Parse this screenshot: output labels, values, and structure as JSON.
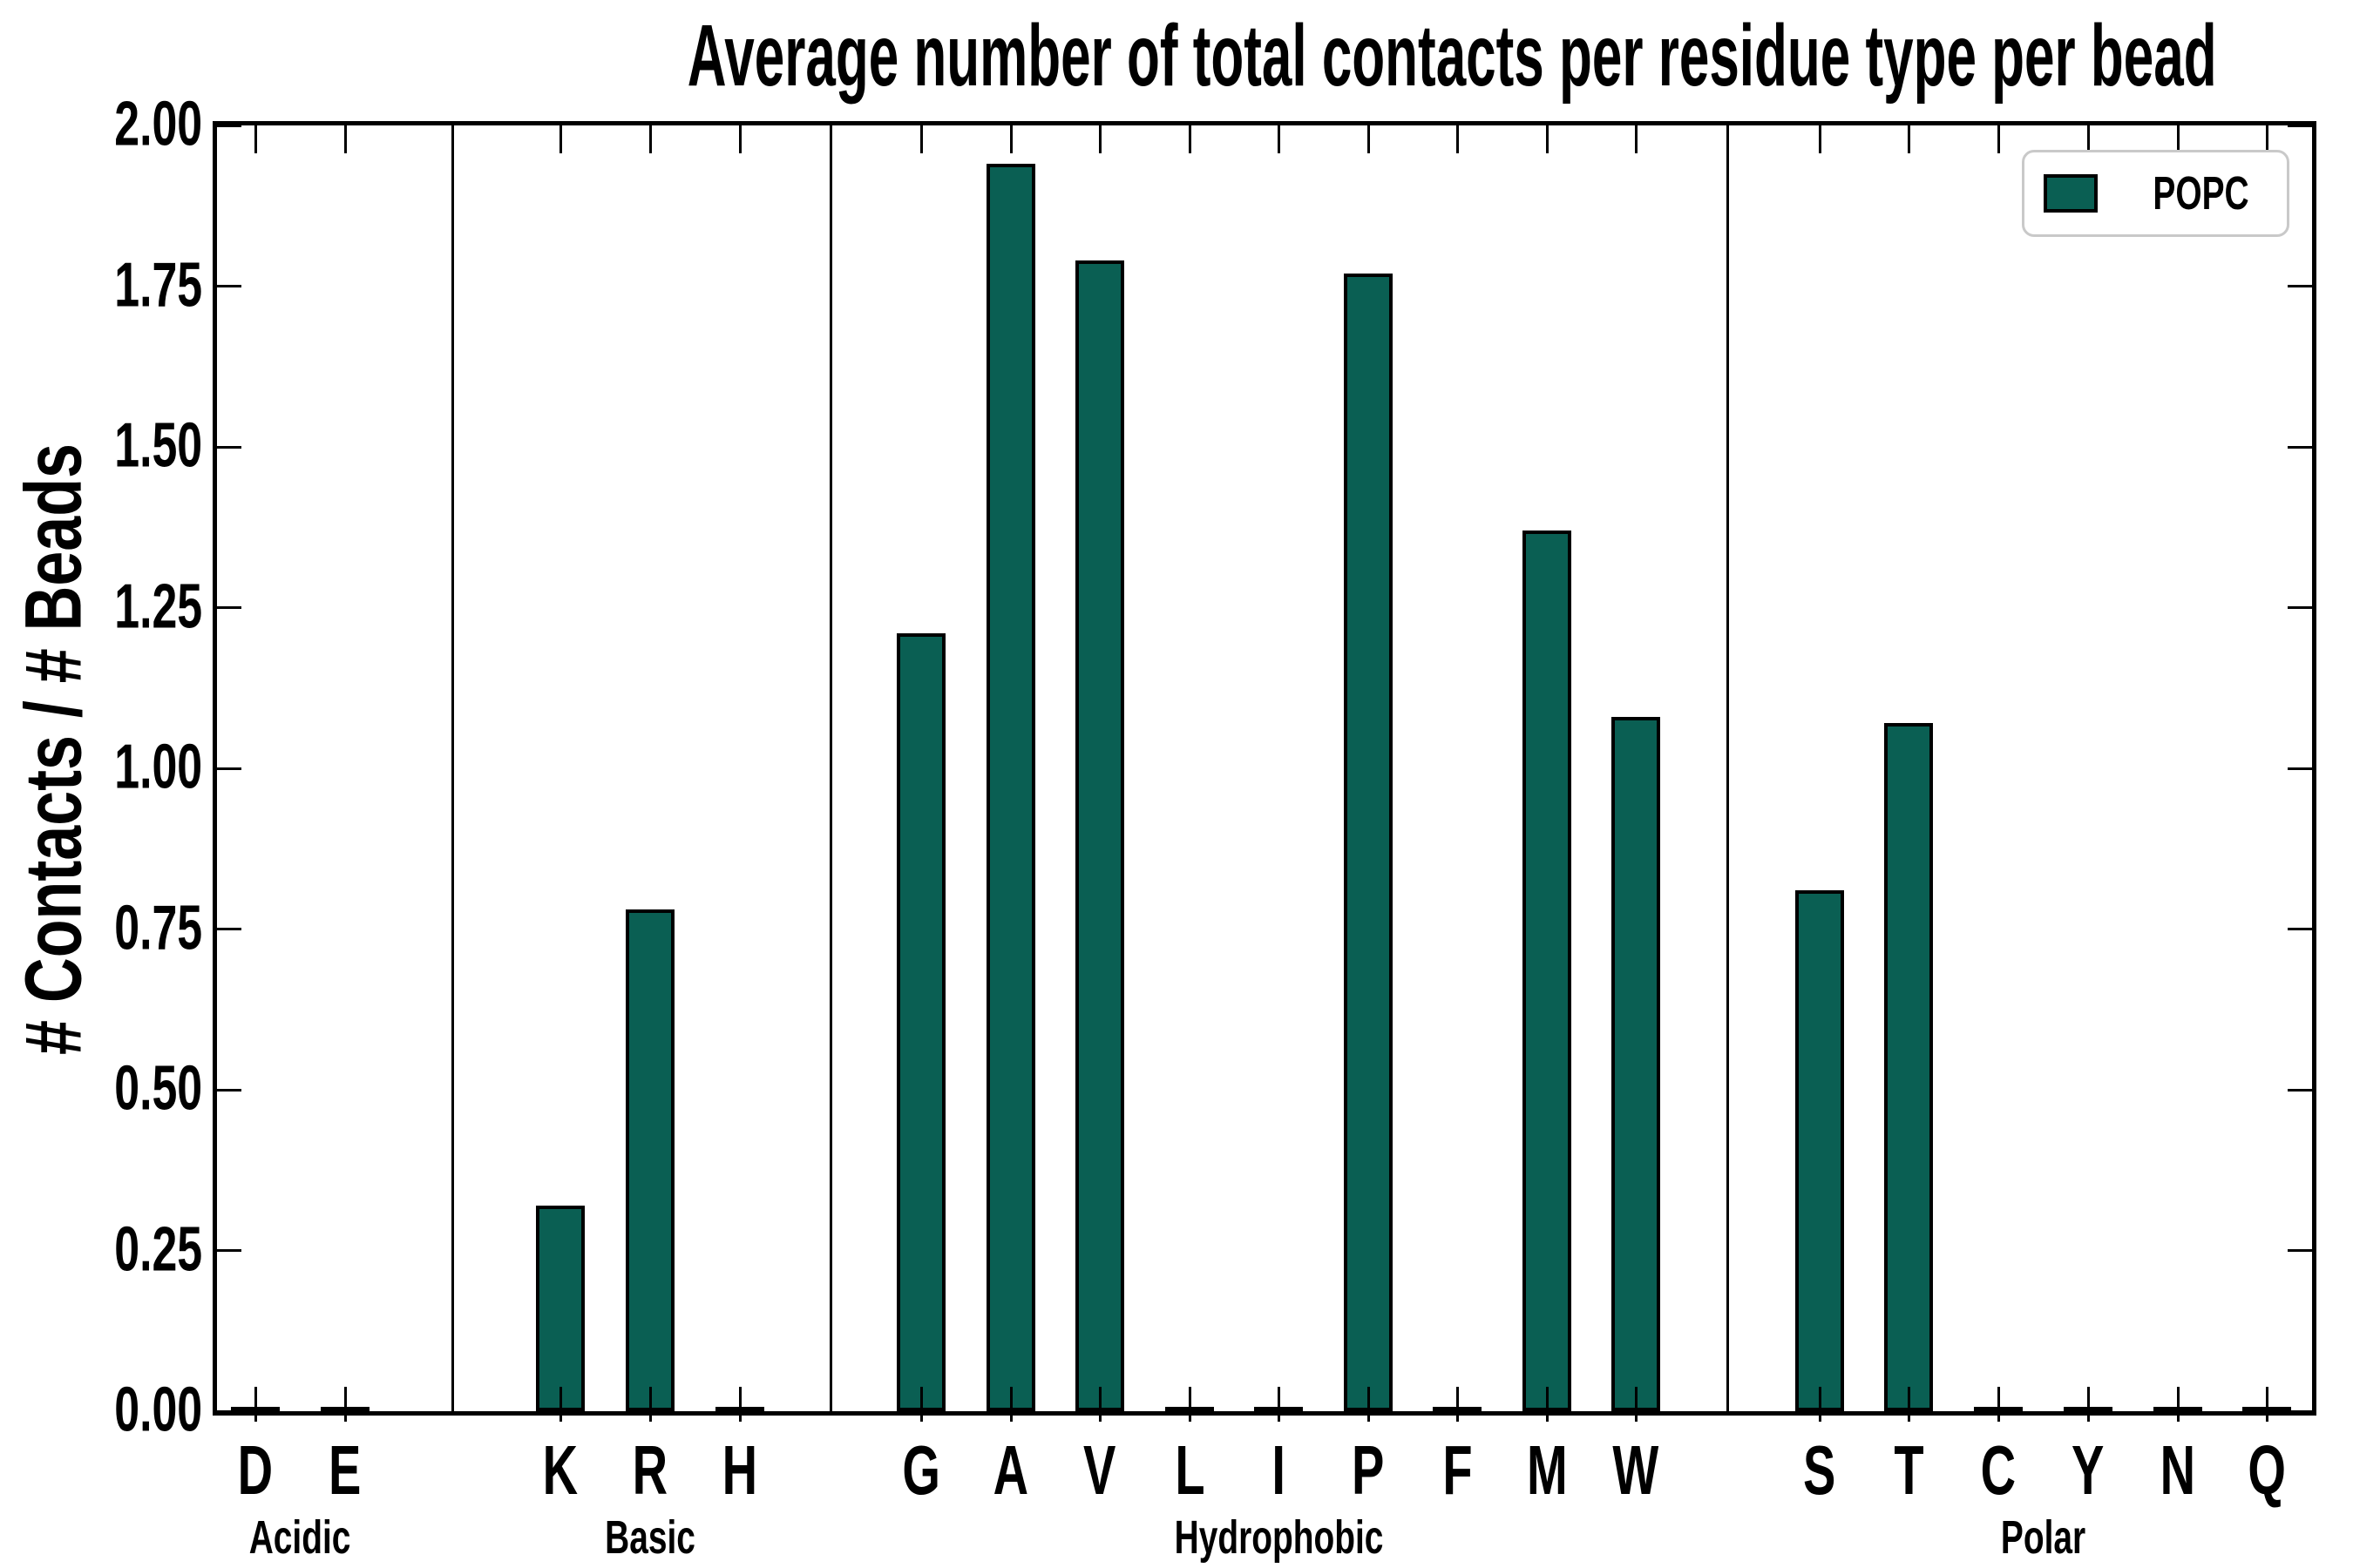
{
  "title": "Average number of total contacts per residue type per bead",
  "y_axis": {
    "label": "# Contacts / # Beads",
    "tick_labels": [
      "0.00",
      "0.25",
      "0.50",
      "0.75",
      "1.00",
      "1.25",
      "1.50",
      "1.75",
      "2.00"
    ]
  },
  "legend": {
    "label": "POPC",
    "position": "upper right",
    "border_color": "#c9c9c9"
  },
  "colors": {
    "bar_fill": "#0a5f53",
    "bar_edge": "#000000",
    "axis": "#000000",
    "background": "#ffffff"
  },
  "chart_data": {
    "type": "bar",
    "title": "Average number of total contacts per residue type per bead",
    "xlabel": "",
    "ylabel": "# Contacts / # Beads",
    "ylim": [
      0,
      2
    ],
    "ytick_step": 0.25,
    "grid": false,
    "legend_entries": [
      "POPC"
    ],
    "legend_position": "upper right",
    "series_name": "POPC",
    "groups": [
      {
        "name": "Acidic",
        "categories": [
          "D",
          "E"
        ],
        "values": [
          0.0,
          0.0
        ]
      },
      {
        "name": "Basic",
        "categories": [
          "K",
          "R",
          "H"
        ],
        "values": [
          0.32,
          0.78,
          0.0
        ]
      },
      {
        "name": "Hydrophobic",
        "categories": [
          "G",
          "A",
          "V",
          "L",
          "I",
          "P",
          "F",
          "M",
          "W"
        ],
        "values": [
          1.21,
          1.94,
          1.79,
          0.0,
          0.0,
          1.77,
          0.0,
          1.37,
          1.08
        ]
      },
      {
        "name": "Polar",
        "categories": [
          "S",
          "T",
          "C",
          "Y",
          "N",
          "Q"
        ],
        "values": [
          0.81,
          1.07,
          0.0,
          0.0,
          0.0,
          0.0
        ]
      }
    ]
  }
}
